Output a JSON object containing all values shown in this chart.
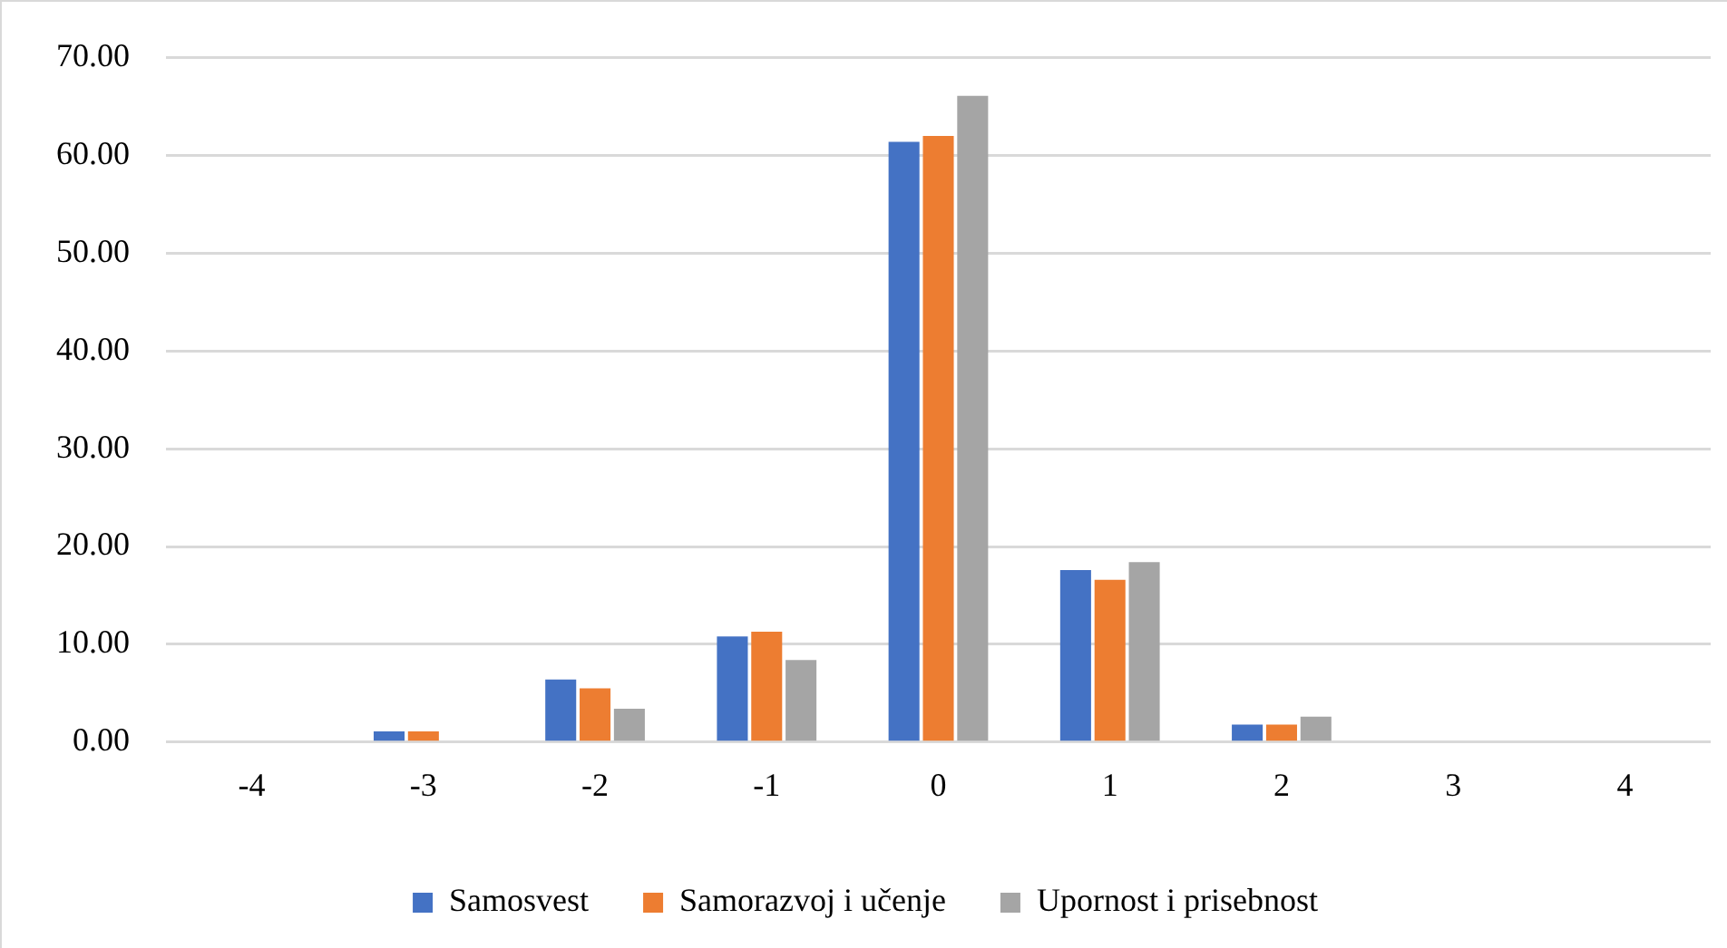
{
  "chart_data": {
    "type": "bar",
    "categories": [
      "-4",
      "-3",
      "-2",
      "-1",
      "0",
      "1",
      "2",
      "3",
      "4"
    ],
    "series": [
      {
        "name": "Samosvest",
        "color": "#4472c4",
        "values": [
          0,
          1.1,
          6.4,
          10.8,
          61.4,
          17.6,
          1.8,
          0,
          0
        ]
      },
      {
        "name": "Samorazvoj i učenje",
        "color": "#ed7d31",
        "values": [
          0,
          1.1,
          5.5,
          11.3,
          62.0,
          16.6,
          1.8,
          0,
          0
        ]
      },
      {
        "name": "Upornost i prisebnost",
        "color": "#a5a5a5",
        "values": [
          0,
          0,
          3.4,
          8.4,
          66.1,
          18.4,
          2.6,
          0,
          0
        ]
      }
    ],
    "ylim": [
      0,
      70
    ],
    "yticks": [
      {
        "value": 0,
        "label": "0.00"
      },
      {
        "value": 10,
        "label": "10.00"
      },
      {
        "value": 20,
        "label": "20.00"
      },
      {
        "value": 30,
        "label": "30.00"
      },
      {
        "value": 40,
        "label": "40.00"
      },
      {
        "value": 50,
        "label": "50.00"
      },
      {
        "value": 60,
        "label": "60.00"
      },
      {
        "value": 70,
        "label": "70.00"
      }
    ],
    "grid": "y",
    "legend": "bottom"
  }
}
